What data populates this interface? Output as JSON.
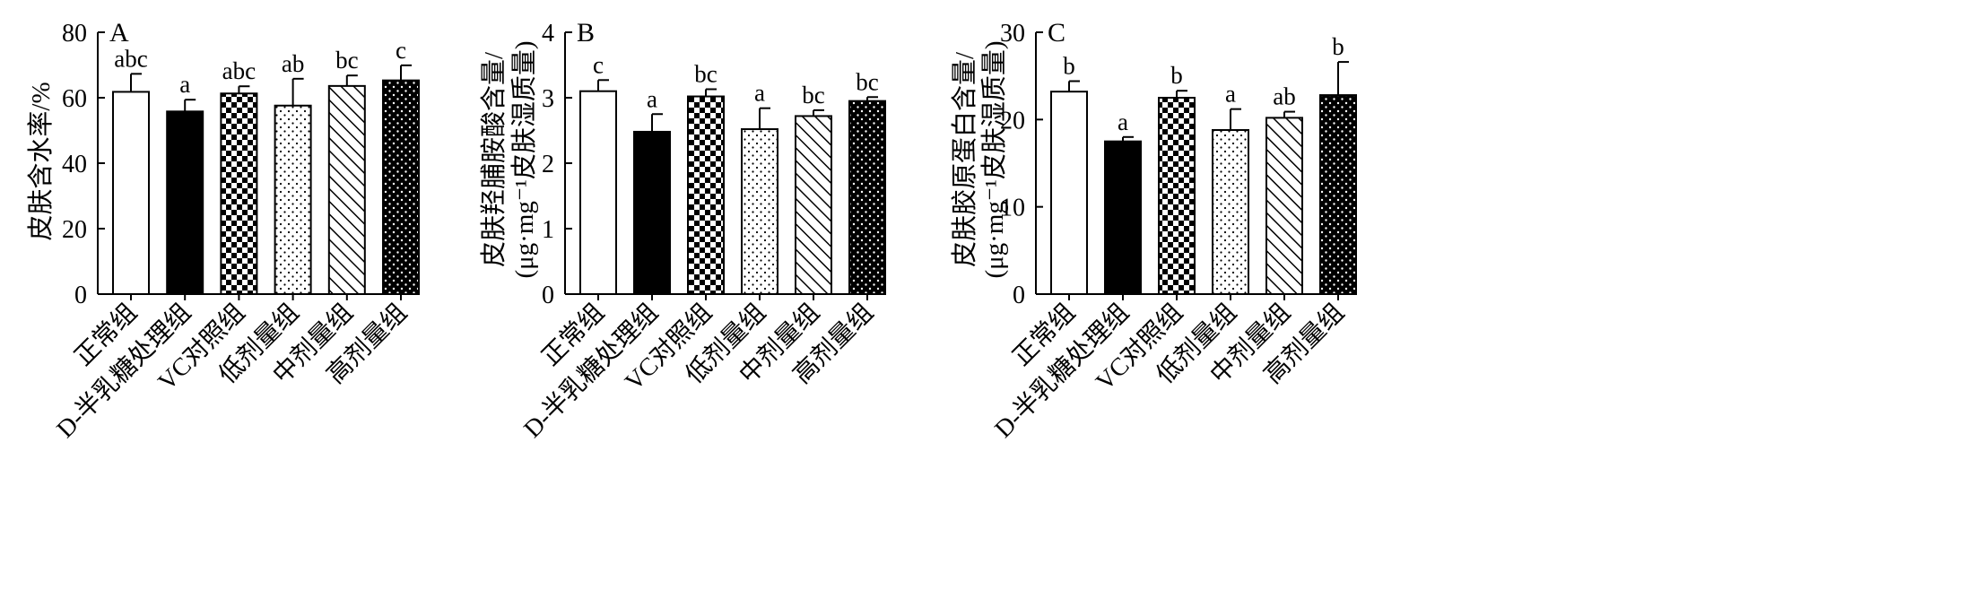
{
  "chart_data": [
    {
      "type": "bar",
      "panel": "A",
      "ylabel": "皮肤含水率/%",
      "ylabel_line2": "",
      "ylim": [
        0,
        80
      ],
      "yticks": [
        "0",
        "20",
        "40",
        "60",
        "80"
      ],
      "categories": [
        "正常组",
        "D-半乳糖处理组",
        "VC对照组",
        "低剂量组",
        "中剂量组",
        "高剂量组"
      ],
      "values": [
        61.8,
        55.8,
        61.3,
        57.6,
        63.6,
        65.3
      ],
      "errors": [
        5.5,
        3.6,
        2.2,
        8.2,
        3.2,
        4.6
      ],
      "significance": [
        "abc",
        "a",
        "abc",
        "ab",
        "bc",
        "c"
      ]
    },
    {
      "type": "bar",
      "panel": "B",
      "ylabel": "皮肤羟脯胺酸含量/",
      "ylabel_line2": "(μg·mg⁻¹皮肤湿质量)",
      "ylim": [
        0,
        4
      ],
      "yticks": [
        "0",
        "1",
        "2",
        "3",
        "4"
      ],
      "categories": [
        "正常组",
        "D-半乳糖处理组",
        "VC对照组",
        "低剂量组",
        "中剂量组",
        "高剂量组"
      ],
      "values": [
        3.1,
        2.48,
        3.02,
        2.52,
        2.72,
        2.95
      ],
      "errors": [
        0.17,
        0.27,
        0.11,
        0.32,
        0.09,
        0.06
      ],
      "significance": [
        "c",
        "a",
        "bc",
        "a",
        "bc",
        "bc"
      ]
    },
    {
      "type": "bar",
      "panel": "C",
      "ylabel": "皮肤胶原蛋白含量/",
      "ylabel_line2": "(μg·mg⁻¹皮肤湿质量)",
      "ylim": [
        0,
        30
      ],
      "yticks": [
        "0",
        "10",
        "20",
        "30"
      ],
      "categories": [
        "正常组",
        "D-半乳糖处理组",
        "VC对照组",
        "低剂量组",
        "中剂量组",
        "高剂量组"
      ],
      "values": [
        23.2,
        17.5,
        22.5,
        18.8,
        20.2,
        22.8
      ],
      "errors": [
        1.2,
        0.5,
        0.8,
        2.4,
        0.7,
        3.8
      ],
      "significance": [
        "b",
        "a",
        "b",
        "a",
        "ab",
        "b"
      ]
    }
  ]
}
